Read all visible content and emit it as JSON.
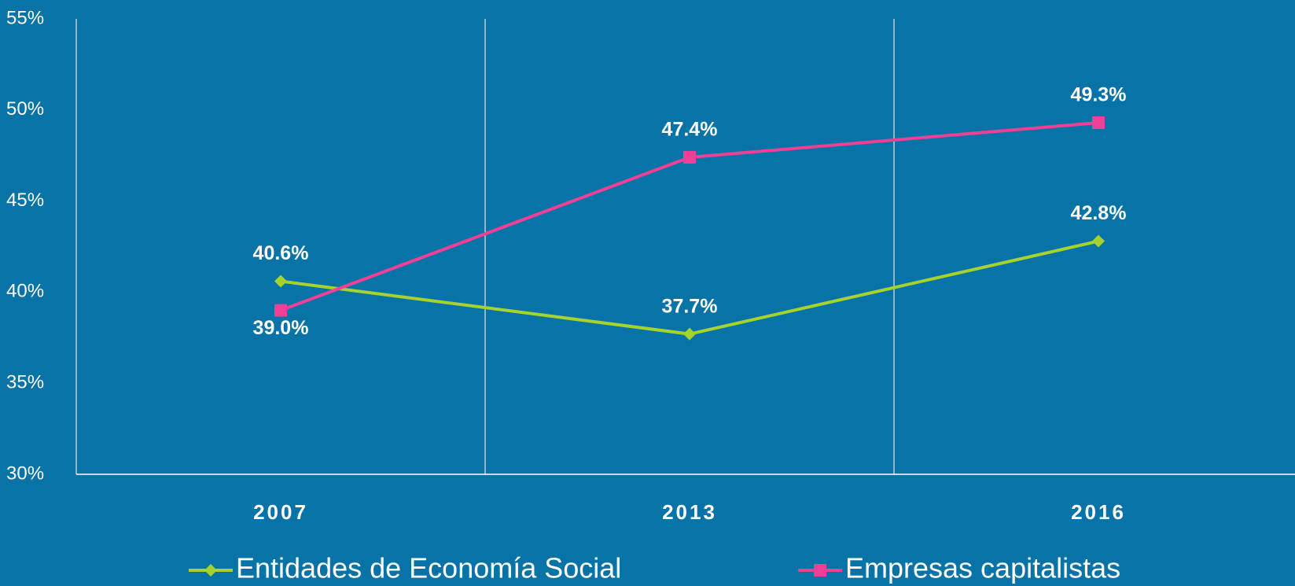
{
  "chart_data": {
    "type": "line",
    "categories": [
      "2007",
      "2013",
      "2016"
    ],
    "series": [
      {
        "name": "Entidades de Economía Social",
        "color": "#a5d22d",
        "marker": "diamond",
        "values": [
          40.6,
          37.7,
          42.8
        ],
        "value_labels": [
          "40.6%",
          "37.7%",
          "42.8%"
        ]
      },
      {
        "name": "Empresas capitalistas",
        "color": "#ef3f97",
        "marker": "square",
        "values": [
          39.0,
          47.4,
          49.3
        ],
        "value_labels": [
          "39.0%",
          "47.4%",
          "49.3%"
        ]
      }
    ],
    "ylim": [
      30,
      55
    ],
    "yticks": [
      {
        "value": 30,
        "label": "30%"
      },
      {
        "value": 35,
        "label": "35%"
      },
      {
        "value": 40,
        "label": "40%"
      },
      {
        "value": 45,
        "label": "45%"
      },
      {
        "value": 50,
        "label": "50%"
      },
      {
        "value": 55,
        "label": "55%"
      }
    ],
    "grid": false,
    "legend": "bottom"
  }
}
